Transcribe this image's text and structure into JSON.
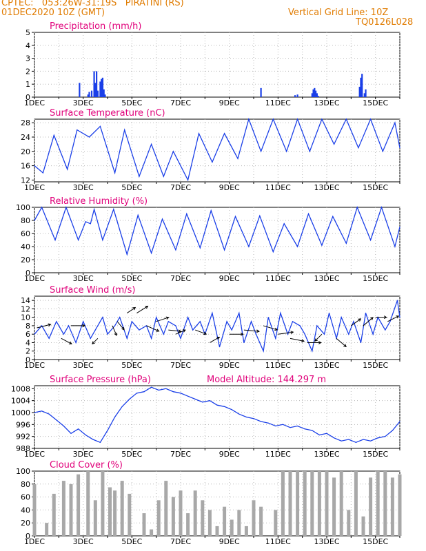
{
  "header": {
    "line1": "CPTEC:   053:26W-31:19S   PIRATINI (RS)",
    "line2": "01DEC2020 10Z (GMT)",
    "grid_note": "Vertical Grid Line: 10Z",
    "code": "TQ0126L028"
  },
  "colors": {
    "header": "#e07b00",
    "title": "#e0007a",
    "line": "#1a3fe8",
    "cloud": "#a8a8a8",
    "grid": "#b8b8b8"
  },
  "x_ticks": [
    "1DEC",
    "3DEC",
    "5DEC",
    "7DEC",
    "9DEC",
    "11DEC",
    "13DEC",
    "15DEC"
  ],
  "x_range_days": [
    0,
    15
  ],
  "chart_data": [
    {
      "type": "bar",
      "title": "Precipitation (mm/h)",
      "ylim": [
        0,
        5
      ],
      "yticks": [
        "0",
        "1",
        "2",
        "3",
        "4",
        "5"
      ],
      "x_days": [
        1.85,
        2.2,
        2.25,
        2.35,
        2.45,
        2.5,
        2.55,
        2.6,
        2.7,
        2.75,
        2.8,
        2.85,
        2.9,
        9.3,
        10.7,
        10.8,
        11.4,
        11.45,
        11.5,
        11.55,
        11.6,
        11.65,
        13.35,
        13.4,
        13.45,
        13.55,
        13.6
      ],
      "values": [
        1.1,
        0.2,
        0.4,
        0.5,
        2.0,
        1.1,
        2.0,
        0.5,
        1.2,
        1.4,
        1.5,
        0.6,
        0.2,
        0.7,
        0.15,
        0.2,
        0.3,
        0.6,
        0.7,
        0.5,
        0.3,
        0.1,
        0.8,
        1.5,
        1.8,
        0.3,
        0.6
      ]
    },
    {
      "type": "line",
      "title": "Surface Temperature (nC)",
      "ylim": [
        11.5,
        29
      ],
      "yticks": [
        "12",
        "16",
        "20",
        "24",
        "28"
      ],
      "x_days": [
        0,
        0.35,
        0.8,
        1.35,
        1.75,
        2.25,
        2.7,
        3.3,
        3.7,
        4.3,
        4.8,
        5.3,
        5.7,
        6.3,
        6.75,
        7.3,
        7.8,
        8.35,
        8.8,
        9.3,
        9.8,
        10.35,
        10.8,
        11.3,
        11.8,
        12.3,
        12.8,
        13.3,
        13.8,
        14.3,
        14.8,
        15
      ],
      "values": [
        16,
        14,
        24.5,
        15,
        26,
        24,
        27,
        14,
        26,
        13,
        22,
        13,
        20,
        12,
        25,
        17,
        25,
        18,
        29,
        20,
        29,
        20,
        29,
        20,
        29,
        22,
        29,
        21,
        29,
        20,
        28,
        21
      ]
    },
    {
      "type": "line",
      "title": "Relative Humidity (%)",
      "ylim": [
        0,
        100
      ],
      "yticks": [
        "0",
        "20",
        "40",
        "60",
        "80",
        "100"
      ],
      "x_days": [
        0,
        0.3,
        0.85,
        1.3,
        1.8,
        2.1,
        2.3,
        2.45,
        2.8,
        3.25,
        3.8,
        4.25,
        4.8,
        5.25,
        5.8,
        6.25,
        6.8,
        7.25,
        7.8,
        8.25,
        8.8,
        9.25,
        9.8,
        10.25,
        10.8,
        11.25,
        11.8,
        12.25,
        12.8,
        13.25,
        13.8,
        14.25,
        14.8,
        15
      ],
      "values": [
        80,
        100,
        50,
        100,
        50,
        78,
        75,
        97,
        50,
        97,
        28,
        88,
        30,
        82,
        35,
        90,
        38,
        95,
        35,
        86,
        40,
        87,
        32,
        75,
        40,
        90,
        42,
        86,
        45,
        100,
        50,
        100,
        40,
        70
      ]
    },
    {
      "type": "line",
      "title": "Surface Wind (m/s)",
      "ylim": [
        0,
        15
      ],
      "yticks": [
        "0",
        "2",
        "4",
        "6",
        "8",
        "10",
        "12",
        "14"
      ],
      "x_days": [
        0,
        0.3,
        0.6,
        0.9,
        1.2,
        1.4,
        1.7,
        2.0,
        2.3,
        2.5,
        2.8,
        3.0,
        3.3,
        3.5,
        3.8,
        4.0,
        4.3,
        4.6,
        4.8,
        5.0,
        5.3,
        5.5,
        5.8,
        6.0,
        6.3,
        6.5,
        6.8,
        7.0,
        7.3,
        7.6,
        7.9,
        8.1,
        8.4,
        8.6,
        8.9,
        9.1,
        9.4,
        9.6,
        9.9,
        10.1,
        10.4,
        10.6,
        10.9,
        11.1,
        11.4,
        11.6,
        11.9,
        12.1,
        12.4,
        12.6,
        12.9,
        13.1,
        13.4,
        13.6,
        13.9,
        14.1,
        14.4,
        14.6,
        14.9,
        15.0
      ],
      "values": [
        6,
        8,
        5,
        9,
        6,
        8,
        4,
        9,
        5,
        7,
        10,
        6,
        8,
        10,
        5,
        9,
        7,
        8,
        5,
        10,
        6,
        9,
        8,
        5,
        10,
        7,
        9,
        6,
        11,
        3,
        9,
        7,
        11,
        4,
        9,
        6,
        2,
        10,
        5,
        11,
        6,
        9,
        8,
        6,
        2,
        8,
        6,
        11,
        5,
        10,
        6,
        9,
        4,
        11,
        6,
        10,
        7,
        9,
        14,
        10
      ],
      "legend": "none"
    },
    {
      "type": "line",
      "title": "Surface Pressure (hPa)",
      "annotation": "Model Altitude: 144.297 m",
      "ylim": [
        988,
        1009
      ],
      "yticks": [
        "988",
        "992",
        "996",
        "1000",
        "1004",
        "1008"
      ],
      "x_days": [
        0,
        0.3,
        0.6,
        0.9,
        1.2,
        1.5,
        1.8,
        2.1,
        2.4,
        2.7,
        3.0,
        3.3,
        3.6,
        3.9,
        4.2,
        4.5,
        4.8,
        5.1,
        5.4,
        5.7,
        6.0,
        6.3,
        6.6,
        6.9,
        7.2,
        7.5,
        7.8,
        8.1,
        8.4,
        8.7,
        9.0,
        9.3,
        9.6,
        9.9,
        10.2,
        10.5,
        10.8,
        11.1,
        11.4,
        11.7,
        12.0,
        12.3,
        12.6,
        12.9,
        13.2,
        13.5,
        13.8,
        14.1,
        14.4,
        14.7,
        15.0
      ],
      "values": [
        1000,
        1000.5,
        999.5,
        997.5,
        995.5,
        993,
        994.5,
        992.5,
        991,
        990,
        994,
        998.5,
        1002,
        1004.5,
        1006.5,
        1007,
        1008.5,
        1007.5,
        1008,
        1007,
        1006.5,
        1005.5,
        1004.5,
        1003.5,
        1004,
        1002.5,
        1002,
        1001,
        999.5,
        998.5,
        998,
        997,
        996.5,
        995.5,
        996,
        995,
        995.5,
        994.5,
        994,
        992.5,
        993,
        991.5,
        990.5,
        991,
        990,
        991,
        990.5,
        991.5,
        992,
        994,
        997
      ]
    },
    {
      "type": "bar",
      "title": "Cloud Cover (%)",
      "ylim": [
        0,
        100
      ],
      "yticks": [
        "0",
        "20",
        "40",
        "60",
        "80",
        "100"
      ],
      "x_days": [
        0,
        0.5,
        0.8,
        1.2,
        1.5,
        1.8,
        2.2,
        2.5,
        2.8,
        3.1,
        3.3,
        3.6,
        3.9,
        4.2,
        4.5,
        4.8,
        5.1,
        5.4,
        5.7,
        6.0,
        6.3,
        6.6,
        6.9,
        7.2,
        7.5,
        7.8,
        8.1,
        8.4,
        8.7,
        9.0,
        9.3,
        9.6,
        9.9,
        10.2,
        10.5,
        10.8,
        11.1,
        11.4,
        11.7,
        12.0,
        12.3,
        12.6,
        12.9,
        13.2,
        13.5,
        13.8,
        14.1,
        14.4,
        14.7,
        15.0
      ],
      "values": [
        80,
        20,
        65,
        85,
        80,
        95,
        100,
        55,
        100,
        75,
        70,
        85,
        65,
        0,
        35,
        10,
        55,
        85,
        60,
        70,
        35,
        70,
        55,
        40,
        15,
        45,
        25,
        40,
        15,
        55,
        45,
        0,
        40,
        100,
        100,
        100,
        100,
        100,
        100,
        100,
        90,
        100,
        40,
        100,
        30,
        90,
        100,
        100,
        90,
        95
      ]
    }
  ]
}
